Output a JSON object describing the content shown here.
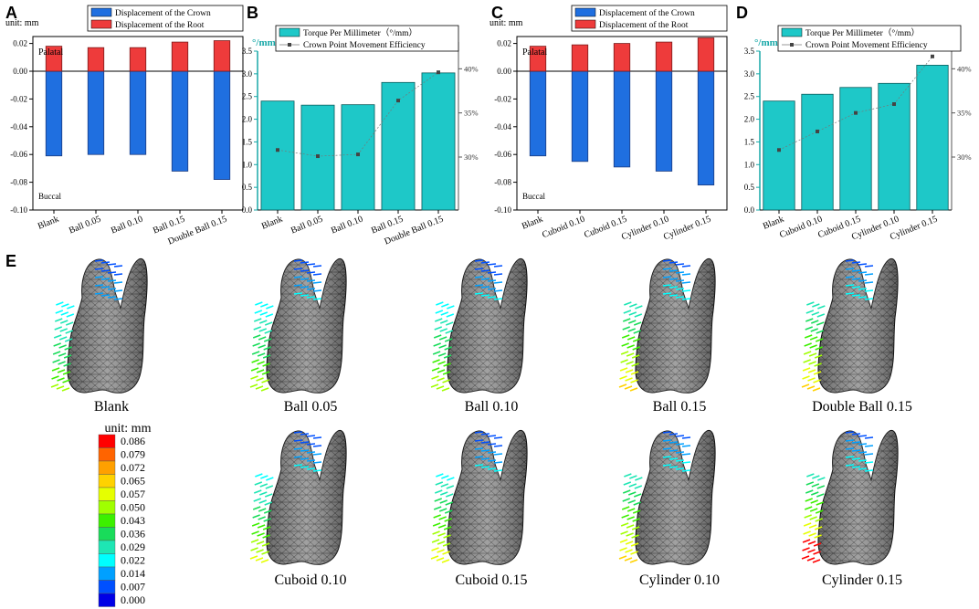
{
  "panel_labels": {
    "A": "A",
    "B": "B",
    "C": "C",
    "D": "D",
    "E": "E"
  },
  "colors": {
    "crown": "#1f6fe0",
    "root": "#ee3b3b",
    "teal": "#1ec8c8",
    "teal_text": "#18a8a8",
    "efficiency": "#444444",
    "tooth_fill": "#8a8a8a",
    "tooth_mesh": "#222222"
  },
  "chart_data": [
    {
      "id": "A",
      "type": "bar",
      "title": "",
      "ylabel_unit": "unit: mm",
      "legend": [
        "Displacement of the Crown",
        "Displacement of the Root"
      ],
      "annotations": {
        "top": "Palatal",
        "bottom": "Buccal"
      },
      "categories": [
        "Blank",
        "Ball 0.05",
        "Ball 0.10",
        "Ball 0.15",
        "Double Ball 0.15"
      ],
      "series": [
        {
          "name": "Displacement of the Crown",
          "values": [
            -0.061,
            -0.06,
            -0.06,
            -0.072,
            -0.078
          ]
        },
        {
          "name": "Displacement of the Root",
          "values": [
            0.018,
            0.017,
            0.017,
            0.021,
            0.022
          ]
        }
      ],
      "ylim": [
        -0.1,
        0.025
      ],
      "yticks": [
        0.02,
        0.0,
        -0.02,
        -0.04,
        -0.06,
        -0.08,
        -0.1
      ],
      "ytick_labels": [
        "0.02",
        "0.00",
        "-0.02",
        "-0.04",
        "-0.06",
        "-0.08",
        "-0.10"
      ]
    },
    {
      "id": "B",
      "type": "bar",
      "unit_label": "°/mm",
      "legend": [
        "Torque Per Millimeter（°/mm）",
        "Crown Point Movement Efficiency"
      ],
      "categories": [
        "Blank",
        "Ball 0.05",
        "Ball 0.10",
        "Ball 0.15",
        "Double Ball 0.15"
      ],
      "series": [
        {
          "name": "Torque Per Millimeter",
          "values": [
            2.4,
            2.31,
            2.32,
            2.81,
            3.02
          ]
        },
        {
          "name": "Crown Point Movement Efficiency",
          "values": [
            30.8,
            30.1,
            30.3,
            36.4,
            39.6
          ]
        }
      ],
      "ylim": [
        0,
        3.5
      ],
      "yticks": [
        0,
        0.5,
        1.0,
        1.5,
        2.0,
        2.5,
        3.0,
        3.5
      ],
      "ytick_labels": [
        "0.0",
        "0.5",
        "1.0",
        "1.5",
        "2.0",
        "2.5",
        "3.0",
        "3.5"
      ],
      "y2lim": [
        24,
        42
      ],
      "y2ticks": [
        30,
        35,
        40
      ],
      "y2tick_labels": [
        "30%",
        "35%",
        "40%"
      ]
    },
    {
      "id": "C",
      "type": "bar",
      "title": "",
      "ylabel_unit": "unit: mm",
      "legend": [
        "Displacement of the Crown",
        "Displacement of the Root"
      ],
      "annotations": {
        "top": "Palatal",
        "bottom": "Buccal"
      },
      "categories": [
        "Blank",
        "Cuboid 0.10",
        "Cuboid 0.15",
        "Cylinder 0.10",
        "Cylinder 0.15"
      ],
      "series": [
        {
          "name": "Displacement of the Crown",
          "values": [
            -0.061,
            -0.065,
            -0.069,
            -0.072,
            -0.082
          ]
        },
        {
          "name": "Displacement of the Root",
          "values": [
            0.018,
            0.019,
            0.02,
            0.021,
            0.024
          ]
        }
      ],
      "ylim": [
        -0.1,
        0.025
      ],
      "yticks": [
        0.02,
        0.0,
        -0.02,
        -0.04,
        -0.06,
        -0.08,
        -0.1
      ],
      "ytick_labels": [
        "0.02",
        "0.00",
        "-0.02",
        "-0.04",
        "-0.06",
        "-0.08",
        "-0.10"
      ]
    },
    {
      "id": "D",
      "type": "bar",
      "unit_label": "°/mm",
      "legend": [
        "Torque Per Millimeter（°/mm）",
        "Crown Point Movement Efficiency"
      ],
      "categories": [
        "Blank",
        "Cuboid 0.10",
        "Cuboid 0.15",
        "Cylinder 0.10",
        "Cylinder 0.15"
      ],
      "series": [
        {
          "name": "Torque Per Millimeter",
          "values": [
            2.4,
            2.55,
            2.7,
            2.79,
            3.19
          ]
        },
        {
          "name": "Crown Point Movement Efficiency",
          "values": [
            30.8,
            32.9,
            35.0,
            36.0,
            41.4
          ]
        }
      ],
      "ylim": [
        0,
        3.5
      ],
      "yticks": [
        0,
        0.5,
        1.0,
        1.5,
        2.0,
        2.5,
        3.0,
        3.5
      ],
      "ytick_labels": [
        "0.0",
        "0.5",
        "1.0",
        "1.5",
        "2.0",
        "2.5",
        "3.0",
        "3.5"
      ],
      "y2lim": [
        24,
        42
      ],
      "y2ticks": [
        30,
        35,
        40
      ],
      "y2tick_labels": [
        "30%",
        "35%",
        "40%"
      ]
    }
  ],
  "colorbar": {
    "title": "unit: mm",
    "levels": [
      "0.086",
      "0.079",
      "0.072",
      "0.065",
      "0.057",
      "0.050",
      "0.043",
      "0.036",
      "0.029",
      "0.022",
      "0.014",
      "0.007",
      "0.000"
    ],
    "colors": [
      "#ff0000",
      "#ff6400",
      "#ffa000",
      "#ffd200",
      "#e6ff00",
      "#a0ff00",
      "#3cf000",
      "#19dc5a",
      "#1ee6b4",
      "#00ffff",
      "#00a0ff",
      "#0050ff",
      "#0000e6"
    ]
  },
  "teeth": [
    {
      "label": "Blank",
      "severity": 0.55
    },
    {
      "label": "Ball 0.05",
      "severity": 0.6
    },
    {
      "label": "Ball 0.10",
      "severity": 0.6
    },
    {
      "label": "Ball 0.15",
      "severity": 0.75
    },
    {
      "label": "Double Ball 0.15",
      "severity": 0.8
    },
    {
      "label": "Cuboid 0.10",
      "severity": 0.65
    },
    {
      "label": "Cuboid 0.15",
      "severity": 0.72
    },
    {
      "label": "Cylinder 0.10",
      "severity": 0.75
    },
    {
      "label": "Cylinder 0.15",
      "severity": 0.9
    }
  ]
}
